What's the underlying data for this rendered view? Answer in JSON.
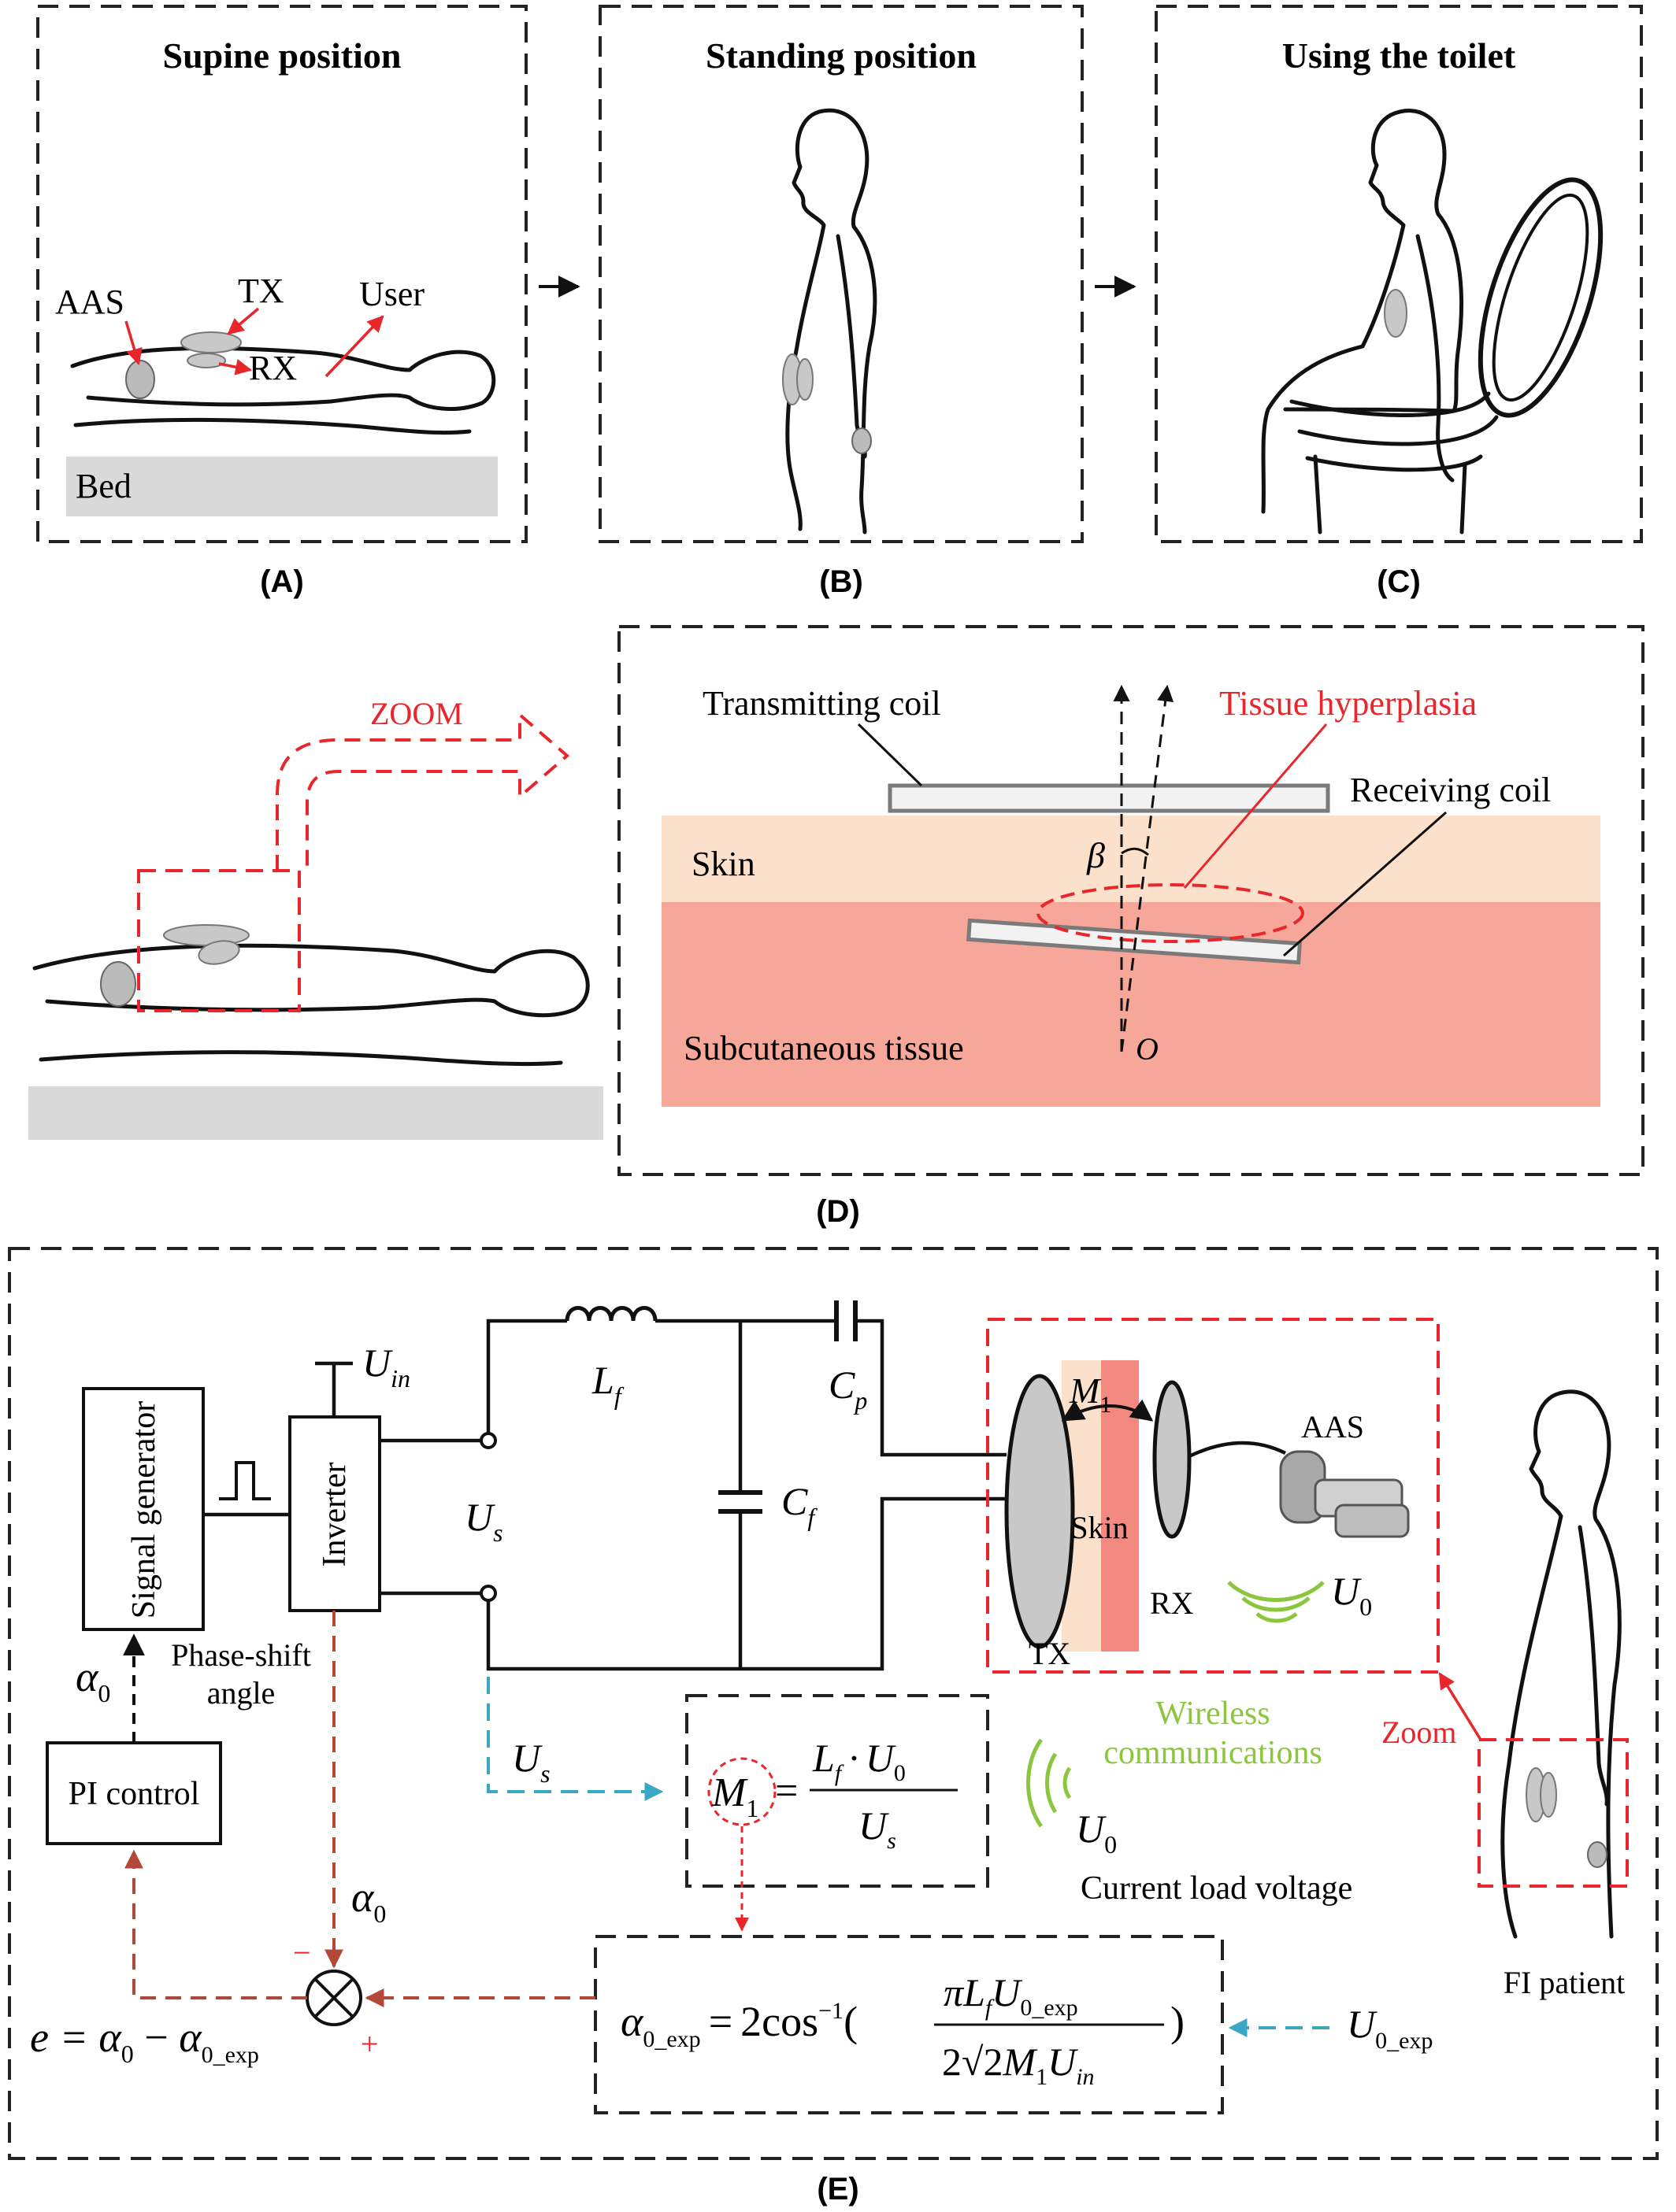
{
  "panels": {
    "a": {
      "caption": "(A)",
      "title": "Supine position",
      "labels": {
        "aas": "AAS",
        "tx": "TX",
        "rx": "RX",
        "user": "User",
        "bed": "Bed"
      }
    },
    "b": {
      "caption": "(B)",
      "title": "Standing position"
    },
    "c": {
      "caption": "(C)",
      "title": "Using the toilet"
    },
    "d": {
      "caption": "(D)",
      "zoom": "ZOOM",
      "labels": {
        "transmitting_coil": "Transmitting coil",
        "tissue_hyperplasia": "Tissue hyperplasia",
        "receiving_coil": "Receiving coil",
        "skin": "Skin",
        "subcutaneous": "Subcutaneous tissue",
        "beta": "β",
        "origin": "O"
      }
    },
    "e": {
      "caption": "(E)",
      "blocks": {
        "signal_generator": "Signal generator",
        "inverter": "Inverter",
        "pi_control": "PI control"
      },
      "symbols": {
        "u": "U",
        "in": "in",
        "s": "s",
        "l": "L",
        "f": "f",
        "c": "C",
        "p": "p",
        "m": "M",
        "one": "1",
        "alpha": "α",
        "zero": "0",
        "exp": "_exp",
        "zero_exp": "0_exp",
        "pi": "π",
        "dot": "·",
        "two_cos": "2cos",
        "minus_one": "−1",
        "two_root2": "2√2",
        "e_eq": "e = ",
        "alpha0_minus": " − ",
        "minus": "−",
        "plus": "+"
      },
      "labels": {
        "phase_shift": "Phase-shift",
        "angle": "angle",
        "skin": "Skin",
        "tx": "TX",
        "rx": "RX",
        "aas": "AAS",
        "wireless_1": "Wireless",
        "wireless_2": "communications",
        "current_load_voltage": "Current load voltage",
        "zoom": "Zoom",
        "fi_patient": "FI patient"
      }
    }
  },
  "colors": {
    "red": "#e8262b",
    "teal": "#3aa7c4",
    "brown": "#b5473a",
    "green": "#8cc63f",
    "skin": "#fbe0cc",
    "tissue": "#f7a69a",
    "bed": "#d9d9d9",
    "coil_gray": "#c8c8c8"
  }
}
